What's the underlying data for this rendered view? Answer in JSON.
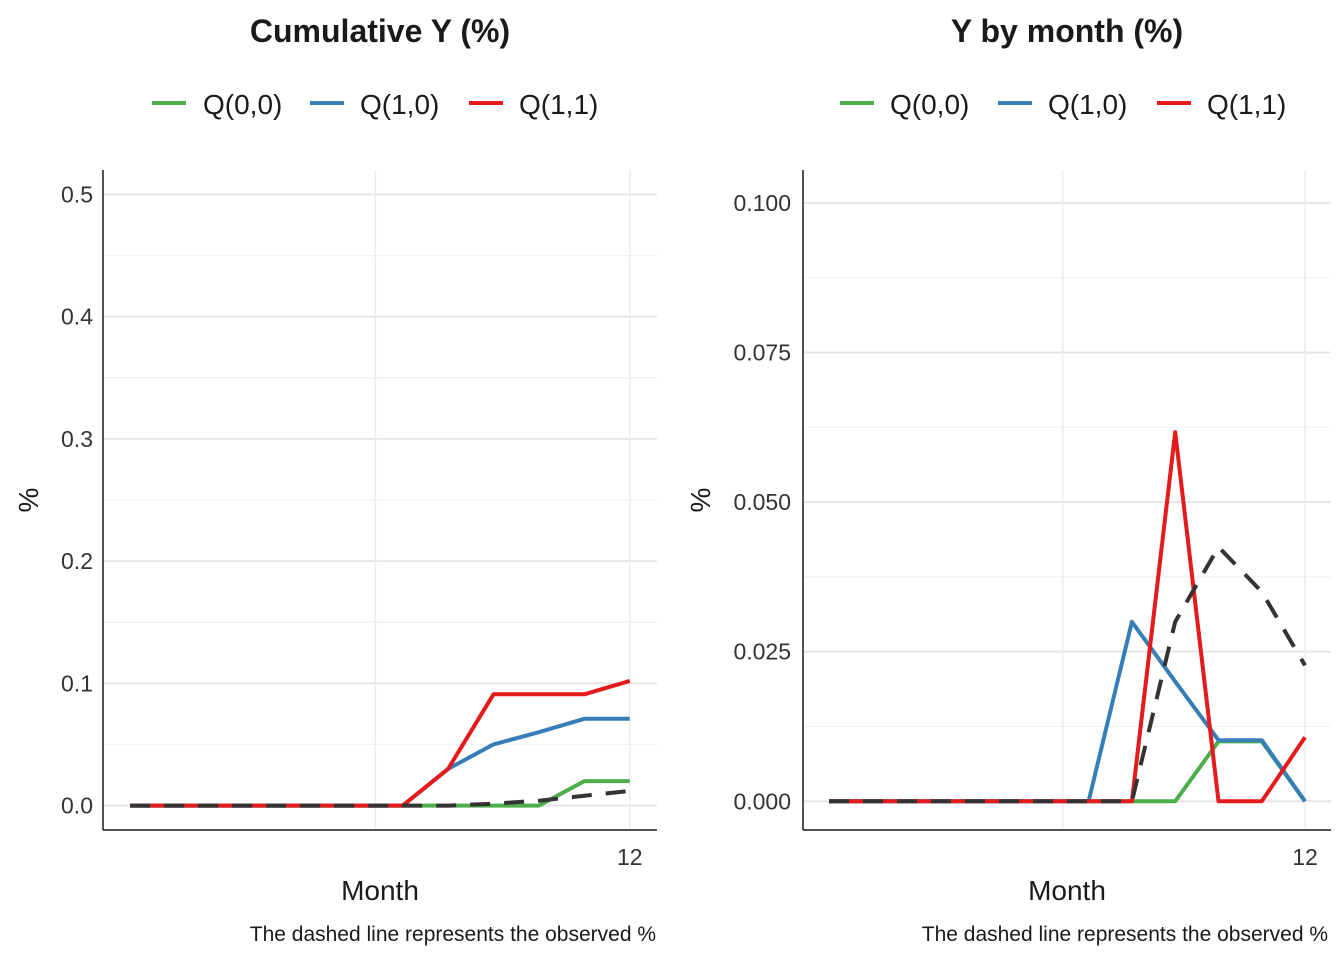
{
  "chart_data": [
    {
      "type": "line",
      "title": "Cumulative Y (%)",
      "xlabel": "Month",
      "ylabel": "%",
      "caption": "The dashed line represents the observed %",
      "x": [
        1,
        2,
        3,
        4,
        5,
        6,
        7,
        8,
        9,
        10,
        11,
        12
      ],
      "xlim": [
        0.4,
        12.6
      ],
      "x_ticks": [
        12
      ],
      "x_tick_labels": [
        "12"
      ],
      "ylim": [
        -0.02,
        0.52
      ],
      "y_ticks": [
        0.0,
        0.1,
        0.2,
        0.3,
        0.4,
        0.5
      ],
      "y_tick_labels": [
        "0.0",
        "0.1",
        "0.2",
        "0.3",
        "0.4",
        "0.5"
      ],
      "grid": true,
      "legend_position": "top",
      "series": [
        {
          "name": "Q(0,0)",
          "color": "#4daf4a",
          "style": "solid",
          "values": [
            0,
            0,
            0,
            0,
            0,
            0,
            0,
            0,
            0,
            0,
            0.02,
            0.02
          ]
        },
        {
          "name": "Q(1,0)",
          "color": "#377eb8",
          "style": "solid",
          "values": [
            0,
            0,
            0,
            0,
            0,
            0,
            0,
            0.03,
            0.05,
            0.06,
            0.071,
            0.071
          ]
        },
        {
          "name": "Q(1,1)",
          "color": "#e41a1c",
          "style": "solid",
          "values": [
            0,
            0,
            0,
            0,
            0,
            0,
            0,
            0.03,
            0.091,
            0.091,
            0.091,
            0.102
          ]
        },
        {
          "name": "",
          "color": "#333333",
          "style": "dashed",
          "values": [
            0,
            0,
            0,
            0,
            0,
            0,
            0,
            0,
            0.0015,
            0.004,
            0.008,
            0.012
          ]
        }
      ]
    },
    {
      "type": "line",
      "title": "Y by month (%)",
      "xlabel": "Month",
      "ylabel": "%",
      "caption": "The dashed line represents the observed %",
      "x": [
        1,
        2,
        3,
        4,
        5,
        6,
        7,
        8,
        9,
        10,
        11,
        12
      ],
      "xlim": [
        0.4,
        12.6
      ],
      "x_ticks": [
        12
      ],
      "x_tick_labels": [
        "12"
      ],
      "ylim": [
        -0.0048,
        0.1055
      ],
      "y_ticks": [
        0.0,
        0.025,
        0.05,
        0.075,
        0.1
      ],
      "y_tick_labels": [
        "0.000",
        "0.025",
        "0.050",
        "0.075",
        "0.100"
      ],
      "grid": true,
      "legend_position": "top",
      "series": [
        {
          "name": "Q(0,0)",
          "color": "#4daf4a",
          "style": "solid",
          "values": [
            0,
            0,
            0,
            0,
            0,
            0,
            0,
            0,
            0,
            0.01,
            0.01,
            0
          ]
        },
        {
          "name": "Q(1,0)",
          "color": "#377eb8",
          "style": "solid",
          "values": [
            0,
            0,
            0,
            0,
            0,
            0,
            0,
            0.03,
            0.02,
            0.0102,
            0.0102,
            0
          ]
        },
        {
          "name": "Q(1,1)",
          "color": "#e41a1c",
          "style": "solid",
          "values": [
            0,
            0,
            0,
            0,
            0,
            0,
            0,
            0,
            0.0617,
            0,
            0,
            0.0107
          ]
        },
        {
          "name": "",
          "color": "#333333",
          "style": "dashed",
          "values": [
            0,
            0,
            0,
            0,
            0,
            0,
            0,
            0,
            0.03,
            0.0425,
            0.035,
            0.0227
          ]
        }
      ]
    }
  ]
}
